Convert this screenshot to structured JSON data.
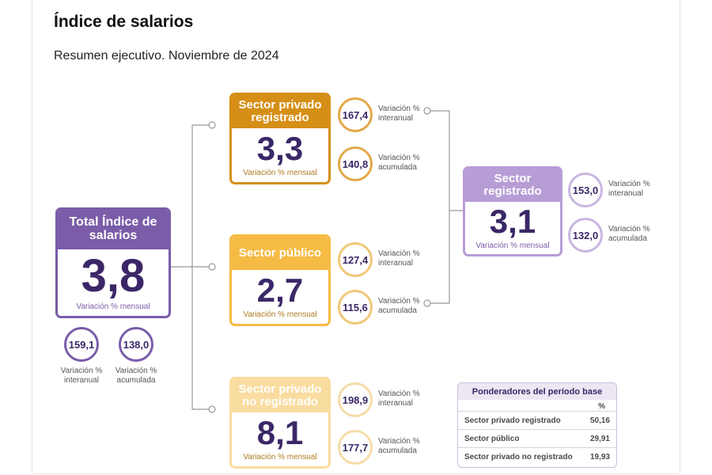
{
  "header": {
    "title": "Índice de salarios",
    "subtitle": "Resumen ejecutivo. Noviembre de 2024"
  },
  "nodes": [
    {
      "label": "Total Índice de salarios",
      "value": "3,8",
      "caption": "Variación % mensual",
      "stats": [
        {
          "value": "159,1",
          "label": "Variación % interanual"
        },
        {
          "value": "138,0",
          "label": "Variación % acumulada"
        }
      ]
    },
    {
      "label": "Sector privado registrado",
      "value": "3,3",
      "caption": "Variación % mensual",
      "stats": [
        {
          "value": "167,4",
          "label": "Variación % interanual"
        },
        {
          "value": "140,8",
          "label": "Variación % acumulada"
        }
      ]
    },
    {
      "label": "Sector público",
      "value": "2,7",
      "caption": "Variación % mensual",
      "stats": [
        {
          "value": "127,4",
          "label": "Variación % interanual"
        },
        {
          "value": "115,6",
          "label": "Variación % acumulada"
        }
      ]
    },
    {
      "label": "Sector privado no registrado",
      "value": "8,1",
      "caption": "Variación % mensual",
      "stats": [
        {
          "value": "198,9",
          "label": "Variación % interanual"
        },
        {
          "value": "177,7",
          "label": "Variación % acumulada"
        }
      ]
    },
    {
      "label": "Sector registrado",
      "value": "3,1",
      "caption": "Variación % mensual",
      "stats": [
        {
          "value": "153,0",
          "label": "Variación % interanual"
        },
        {
          "value": "132,0",
          "label": "Variación % acumulada"
        }
      ]
    }
  ],
  "table": {
    "title": "Ponderadores del período base",
    "unit": "%",
    "rows": [
      [
        "Sector privado registrado",
        "50,16"
      ],
      [
        "Sector público",
        "29,91"
      ],
      [
        "Sector privado no registrado",
        "19,93"
      ]
    ]
  }
}
